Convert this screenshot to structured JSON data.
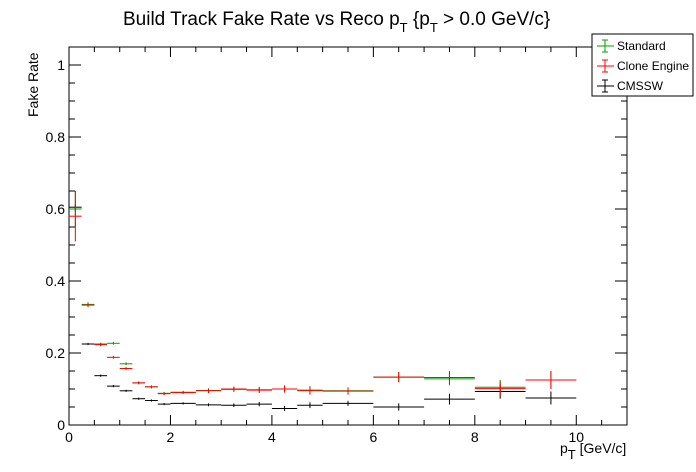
{
  "chart_data": {
    "type": "scatter",
    "title": {
      "main": "Build Track Fake Rate vs Reco p",
      "sub1": "T",
      "brace": " {p",
      "sub2": "T",
      "rest": " > 0.0 GeV/c}"
    },
    "xlabel": {
      "main": "p",
      "sub": "T",
      "rest": " [GeV/c]"
    },
    "ylabel": "Fake Rate",
    "xlim": [
      0,
      11
    ],
    "ylim": [
      0,
      1.05
    ],
    "x_ticks": [
      0,
      2,
      4,
      6,
      8,
      10
    ],
    "y_ticks": [
      0,
      0.2,
      0.4,
      0.6,
      0.8,
      1
    ],
    "x_tick_labels": [
      "0",
      "2",
      "4",
      "6",
      "8",
      "10"
    ],
    "y_tick_labels": [
      "0",
      "0.2",
      "0.4",
      "0.6",
      "0.8",
      "1"
    ],
    "grid": false,
    "legend_position": "top-right",
    "series": [
      {
        "name": "Standard",
        "color": "#00a000",
        "points": [
          {
            "x": 0.125,
            "xerr": 0.125,
            "y": 0.6,
            "yerr": 0.05
          },
          {
            "x": 0.375,
            "xerr": 0.125,
            "y": 0.335,
            "yerr": 0.006
          },
          {
            "x": 0.625,
            "xerr": 0.125,
            "y": 0.225,
            "yerr": 0.004
          },
          {
            "x": 0.875,
            "xerr": 0.125,
            "y": 0.227,
            "yerr": 0.004
          },
          {
            "x": 1.125,
            "xerr": 0.125,
            "y": 0.17,
            "yerr": 0.004
          },
          {
            "x": 1.375,
            "xerr": 0.125,
            "y": 0.117,
            "yerr": 0.004
          },
          {
            "x": 1.625,
            "xerr": 0.125,
            "y": 0.106,
            "yerr": 0.004
          },
          {
            "x": 1.875,
            "xerr": 0.125,
            "y": 0.088,
            "yerr": 0.004
          },
          {
            "x": 2.25,
            "xerr": 0.25,
            "y": 0.091,
            "yerr": 0.004
          },
          {
            "x": 2.75,
            "xerr": 0.25,
            "y": 0.096,
            "yerr": 0.006
          },
          {
            "x": 3.25,
            "xerr": 0.25,
            "y": 0.099,
            "yerr": 0.007
          },
          {
            "x": 3.75,
            "xerr": 0.25,
            "y": 0.098,
            "yerr": 0.008
          },
          {
            "x": 4.25,
            "xerr": 0.25,
            "y": 0.1,
            "yerr": 0.01
          },
          {
            "x": 4.75,
            "xerr": 0.25,
            "y": 0.097,
            "yerr": 0.011
          },
          {
            "x": 5.5,
            "xerr": 0.5,
            "y": 0.095,
            "yerr": 0.01
          },
          {
            "x": 6.5,
            "xerr": 0.5,
            "y": 0.133,
            "yerr": 0.014
          },
          {
            "x": 7.5,
            "xerr": 0.5,
            "y": 0.128,
            "yerr": 0.018
          },
          {
            "x": 8.5,
            "xerr": 0.5,
            "y": 0.105,
            "yerr": 0.02
          },
          {
            "x": 9.5,
            "xerr": 0.5,
            "y": 0.125,
            "yerr": 0.025
          }
        ]
      },
      {
        "name": "Clone Engine",
        "color": "#ff0000",
        "points": [
          {
            "x": 0.125,
            "xerr": 0.125,
            "y": 0.58,
            "yerr": 0.07
          },
          {
            "x": 0.375,
            "xerr": 0.125,
            "y": 0.333,
            "yerr": 0.006
          },
          {
            "x": 0.625,
            "xerr": 0.125,
            "y": 0.223,
            "yerr": 0.004
          },
          {
            "x": 0.875,
            "xerr": 0.125,
            "y": 0.188,
            "yerr": 0.004
          },
          {
            "x": 1.125,
            "xerr": 0.125,
            "y": 0.157,
            "yerr": 0.004
          },
          {
            "x": 1.375,
            "xerr": 0.125,
            "y": 0.117,
            "yerr": 0.004
          },
          {
            "x": 1.625,
            "xerr": 0.125,
            "y": 0.106,
            "yerr": 0.004
          },
          {
            "x": 1.875,
            "xerr": 0.125,
            "y": 0.087,
            "yerr": 0.004
          },
          {
            "x": 2.25,
            "xerr": 0.25,
            "y": 0.09,
            "yerr": 0.004
          },
          {
            "x": 2.75,
            "xerr": 0.25,
            "y": 0.095,
            "yerr": 0.006
          },
          {
            "x": 3.25,
            "xerr": 0.25,
            "y": 0.1,
            "yerr": 0.007
          },
          {
            "x": 3.75,
            "xerr": 0.25,
            "y": 0.097,
            "yerr": 0.008
          },
          {
            "x": 4.25,
            "xerr": 0.25,
            "y": 0.1,
            "yerr": 0.01
          },
          {
            "x": 4.75,
            "xerr": 0.25,
            "y": 0.095,
            "yerr": 0.011
          },
          {
            "x": 5.5,
            "xerr": 0.5,
            "y": 0.094,
            "yerr": 0.01
          },
          {
            "x": 6.5,
            "xerr": 0.5,
            "y": 0.133,
            "yerr": 0.014
          },
          {
            "x": 7.5,
            "xerr": 0.5,
            "y": 0.132,
            "yerr": 0.018
          },
          {
            "x": 8.5,
            "xerr": 0.5,
            "y": 0.101,
            "yerr": 0.02
          },
          {
            "x": 9.5,
            "xerr": 0.5,
            "y": 0.125,
            "yerr": 0.025
          }
        ]
      },
      {
        "name": "CMSSW",
        "color": "#000000",
        "points": [
          {
            "x": 0.125,
            "xerr": 0.125,
            "y": 0.605,
            "yerr": 0.01
          },
          {
            "x": 0.375,
            "xerr": 0.125,
            "y": 0.225,
            "yerr": 0.003
          },
          {
            "x": 0.625,
            "xerr": 0.125,
            "y": 0.137,
            "yerr": 0.003
          },
          {
            "x": 0.875,
            "xerr": 0.125,
            "y": 0.108,
            "yerr": 0.003
          },
          {
            "x": 1.125,
            "xerr": 0.125,
            "y": 0.095,
            "yerr": 0.003
          },
          {
            "x": 1.375,
            "xerr": 0.125,
            "y": 0.073,
            "yerr": 0.003
          },
          {
            "x": 1.625,
            "xerr": 0.125,
            "y": 0.068,
            "yerr": 0.003
          },
          {
            "x": 1.875,
            "xerr": 0.125,
            "y": 0.058,
            "yerr": 0.003
          },
          {
            "x": 2.25,
            "xerr": 0.25,
            "y": 0.06,
            "yerr": 0.003
          },
          {
            "x": 2.75,
            "xerr": 0.25,
            "y": 0.056,
            "yerr": 0.004
          },
          {
            "x": 3.25,
            "xerr": 0.25,
            "y": 0.055,
            "yerr": 0.005
          },
          {
            "x": 3.75,
            "xerr": 0.25,
            "y": 0.058,
            "yerr": 0.006
          },
          {
            "x": 4.25,
            "xerr": 0.25,
            "y": 0.046,
            "yerr": 0.007
          },
          {
            "x": 4.75,
            "xerr": 0.25,
            "y": 0.055,
            "yerr": 0.008
          },
          {
            "x": 5.5,
            "xerr": 0.5,
            "y": 0.06,
            "yerr": 0.007
          },
          {
            "x": 6.5,
            "xerr": 0.5,
            "y": 0.05,
            "yerr": 0.01
          },
          {
            "x": 7.5,
            "xerr": 0.5,
            "y": 0.072,
            "yerr": 0.015
          },
          {
            "x": 8.5,
            "xerr": 0.5,
            "y": 0.093,
            "yerr": 0.02
          },
          {
            "x": 9.5,
            "xerr": 0.5,
            "y": 0.075,
            "yerr": 0.018
          }
        ]
      }
    ]
  }
}
